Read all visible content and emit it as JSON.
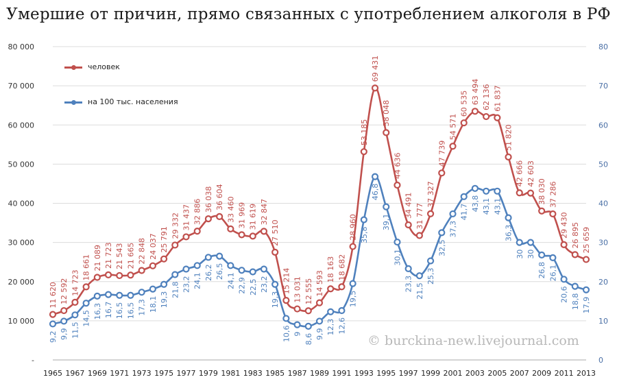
{
  "title": "Умершие от причин, прямо связанных с употреблением алкоголя в РФ",
  "watermark": "© burckina-new.livejournal.com",
  "chart_data": {
    "type": "line",
    "title": "Умершие от причин, прямо связанных с употреблением алкоголя в РФ",
    "x": [
      1965,
      1966,
      1967,
      1968,
      1969,
      1970,
      1971,
      1972,
      1973,
      1974,
      1975,
      1976,
      1977,
      1978,
      1979,
      1980,
      1981,
      1982,
      1983,
      1984,
      1985,
      1986,
      1987,
      1988,
      1989,
      1990,
      1991,
      1992,
      1993,
      1994,
      1995,
      1996,
      1997,
      1998,
      1999,
      2000,
      2001,
      2002,
      2003,
      2004,
      2005,
      2006,
      2007,
      2008,
      2009,
      2010,
      2011,
      2012,
      2013
    ],
    "x_tick_labels": [
      "1965",
      "1967",
      "1969",
      "1971",
      "1973",
      "1975",
      "1977",
      "1979",
      "1981",
      "1983",
      "1985",
      "1987",
      "1989",
      "1991",
      "1993",
      "1995",
      "1997",
      "1999",
      "2001",
      "2003",
      "2005",
      "2007",
      "2009",
      "2011",
      "2013"
    ],
    "y_left": {
      "range": [
        0,
        80000
      ],
      "ticks": [
        "-",
        "10 000",
        "20 000",
        "30 000",
        "40 000",
        "50 000",
        "60 000",
        "70 000",
        "80 000"
      ]
    },
    "y_right": {
      "range": [
        0,
        80
      ],
      "ticks": [
        "0",
        "10",
        "20",
        "30",
        "40",
        "50",
        "60",
        "70",
        "80"
      ]
    },
    "grid": true,
    "legend_position": "top-left",
    "series": [
      {
        "name": "человек",
        "axis": "left",
        "color": "#c0504d",
        "values": [
          11620,
          12592,
          14723,
          18661,
          21089,
          21723,
          21543,
          21665,
          22848,
          24037,
          25791,
          29332,
          31437,
          32886,
          36038,
          36604,
          33460,
          31969,
          31619,
          32847,
          27510,
          15214,
          13031,
          12555,
          14593,
          18163,
          18682,
          28960,
          53185,
          69431,
          58048,
          44636,
          34491,
          31777,
          37327,
          47739,
          54571,
          60535,
          63494,
          62136,
          61837,
          51820,
          42666,
          42603,
          38030,
          37286,
          29430,
          26895,
          25659
        ],
        "labels": [
          "11 620",
          "12 592",
          "14 723",
          "18 661",
          "21 089",
          "21 723",
          "21 543",
          "21 665",
          "22 848",
          "24 037",
          "25 791",
          "29 332",
          "31 437",
          "32 886",
          "36 038",
          "36 604",
          "33 460",
          "31 969",
          "31 619",
          "32 847",
          "27 510",
          "15 214",
          "13 031",
          "12 555",
          "14 593",
          "18 163",
          "18 682",
          "28 960",
          "53 185",
          "69 431",
          "58 048",
          "44 636",
          "34 491",
          "31 777",
          "37 327",
          "47 739",
          "54 571",
          "60 535",
          "63 494",
          "62 136",
          "61 837",
          "51 820",
          "42 666",
          "42 603",
          "38 030",
          "37 286",
          "29 430",
          "26 895",
          "25 659"
        ]
      },
      {
        "name": "на 100 тыс. населения",
        "axis": "right",
        "color": "#4f81bd",
        "values": [
          9.2,
          9.9,
          11.5,
          14.5,
          16.3,
          16.7,
          16.5,
          16.5,
          17.3,
          18.1,
          19.3,
          21.8,
          23.2,
          24.1,
          26.2,
          26.5,
          24.1,
          22.9,
          22.5,
          23.2,
          19.3,
          10.6,
          9,
          8.6,
          9.9,
          12.3,
          12.6,
          19.5,
          35.8,
          46.8,
          39.1,
          30.1,
          23.3,
          21.5,
          25.3,
          32.5,
          37.3,
          41.7,
          43.8,
          43.1,
          43.1,
          36.3,
          30,
          30,
          26.8,
          26.1,
          20.6,
          18.8,
          17.9
        ],
        "labels": [
          "9,2",
          "9,9",
          "11,5",
          "14,5",
          "16,3",
          "16,7",
          "16,5",
          "16,5",
          "17,3",
          "18,1",
          "19,3",
          "21,8",
          "23,2",
          "24,1",
          "26,2",
          "26,5",
          "24,1",
          "22,9",
          "22,5",
          "23,2",
          "19,3",
          "10,6",
          "9",
          "8,6",
          "9,9",
          "12,3",
          "12,6",
          "19,5",
          "35,8",
          "46,8",
          "39,1",
          "30,1",
          "23,3",
          "21,5",
          "25,3",
          "32,5",
          "37,3",
          "41,7",
          "43,8",
          "43,1",
          "43,1",
          "36,3",
          "30",
          "30",
          "26,8",
          "26,1",
          "20,6",
          "18,8",
          "17,9"
        ]
      }
    ]
  }
}
